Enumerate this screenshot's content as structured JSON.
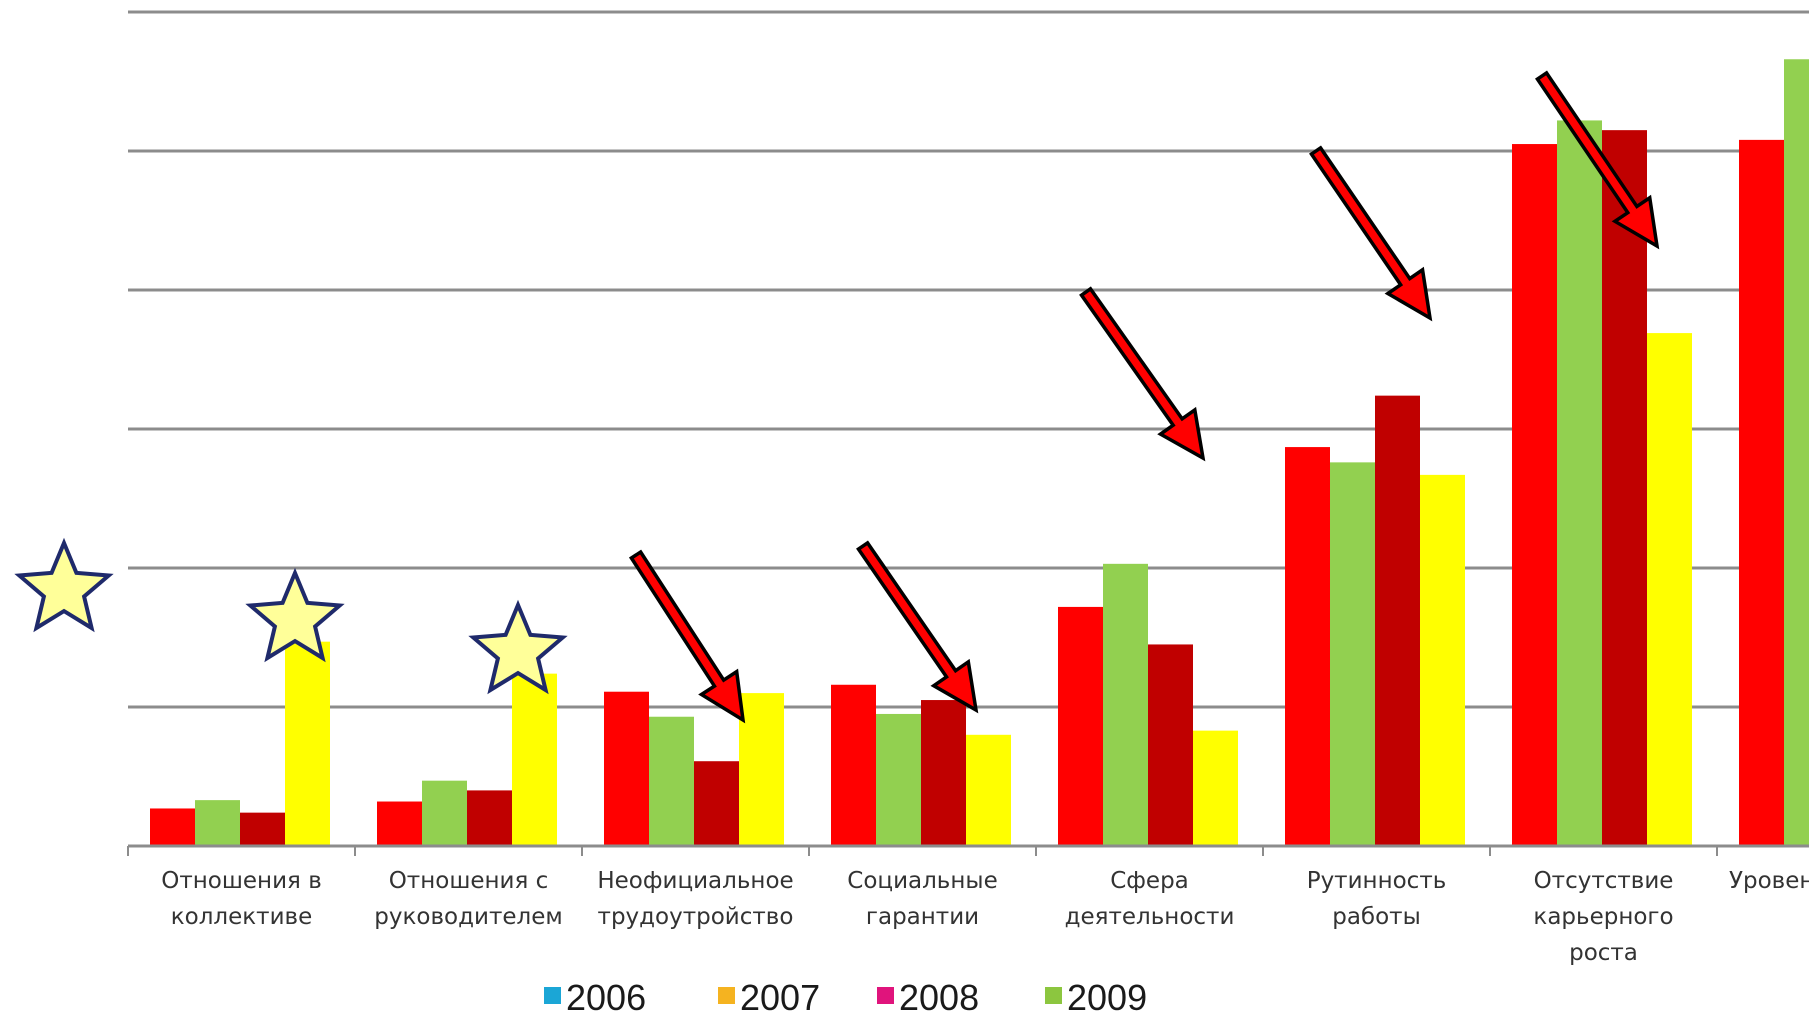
{
  "chart_data": {
    "type": "bar",
    "categories": [
      [
        "Отношения в",
        "коллективе"
      ],
      [
        "Отношения с",
        "руководителем"
      ],
      [
        "Неофициальное",
        "трудоутройство"
      ],
      [
        "Социальные",
        "гарантии"
      ],
      [
        "Сфера",
        "деятельности"
      ],
      [
        "Рутинность",
        "работы"
      ],
      [
        "Отсутствие",
        "карьерного",
        "роста"
      ],
      [
        "Уровень"
      ]
    ],
    "series": [
      {
        "color": "#ff0000",
        "values": [
          0.27,
          0.32,
          1.11,
          1.16,
          1.72,
          2.87,
          5.05,
          5.08
        ]
      },
      {
        "color": "#92d050",
        "values": [
          0.33,
          0.47,
          0.93,
          0.95,
          2.03,
          2.76,
          5.22,
          5.66
        ]
      },
      {
        "color": "#c00000",
        "values": [
          0.24,
          0.4,
          0.61,
          1.05,
          1.45,
          3.24,
          5.15,
          null
        ]
      },
      {
        "color": "#ffff00",
        "values": [
          1.47,
          1.24,
          1.1,
          0.8,
          0.83,
          2.67,
          3.69,
          null
        ]
      }
    ],
    "ylim": [
      0,
      6
    ],
    "grid": true,
    "legend": {
      "placement": "bottom",
      "entries": [
        {
          "label": "2006",
          "color": "#1ba6d6"
        },
        {
          "label": "2007",
          "color": "#f5b320"
        },
        {
          "label": "2008",
          "color": "#e0147c"
        },
        {
          "label": "2009",
          "color": "#8cc63f"
        }
      ]
    },
    "annotations": {
      "arrows": [
        {
          "category": "Неофициальное трудоутройство",
          "color": "#ff0000"
        },
        {
          "category": "Социальные гарантии",
          "color": "#ff0000"
        },
        {
          "category": "Сфера деятельности",
          "color": "#ff0000"
        },
        {
          "category": "Рутинность работы",
          "color": "#ff0000"
        },
        {
          "category": "Отсутствие карьерного роста",
          "color": "#ff0000"
        }
      ],
      "stars": [
        {
          "target": "margin",
          "color": "#ffff99"
        },
        {
          "target": "Отношения в коллективе",
          "color": "#ffff99"
        },
        {
          "target": "Отношения с руководителем",
          "color": "#ffff99"
        }
      ]
    }
  }
}
